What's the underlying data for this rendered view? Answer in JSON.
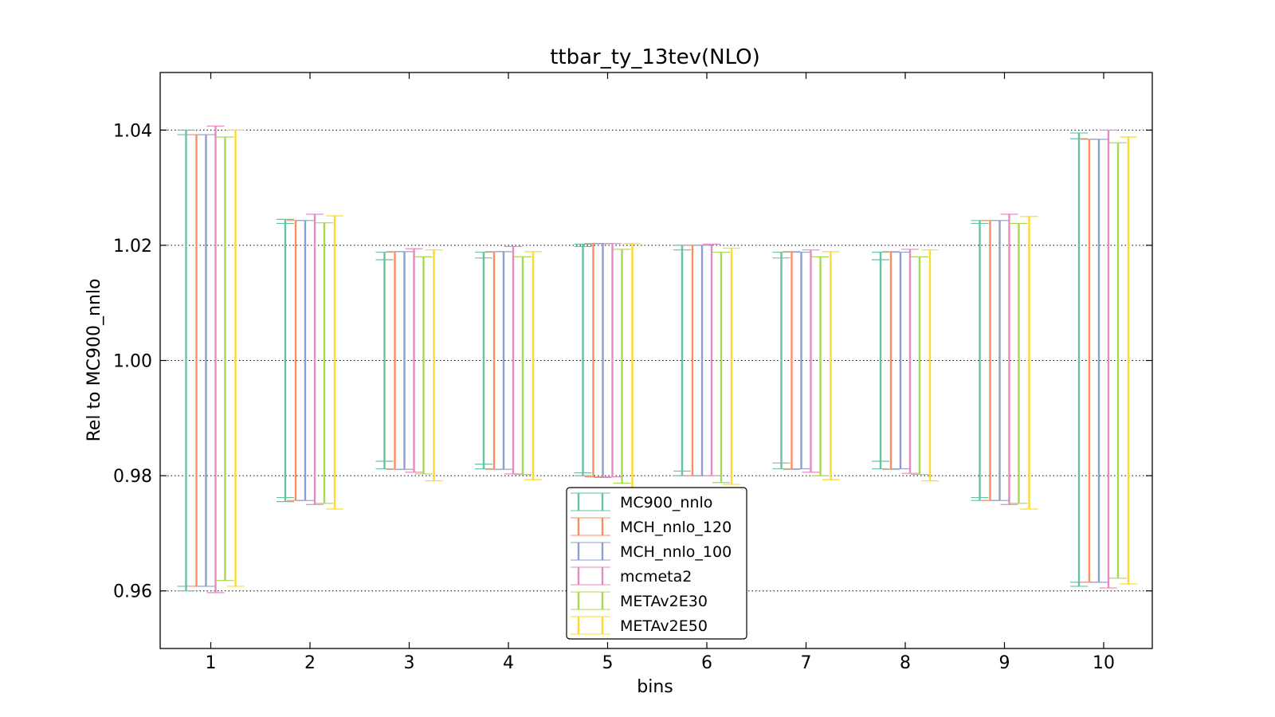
{
  "chart_data": {
    "type": "errorbar",
    "title": "ttbar_ty_13tev(NLO)",
    "xlabel": "bins",
    "ylabel": "Rel to MC900_nnlo",
    "ylim": [
      0.95,
      1.05
    ],
    "yticks": [
      "0.96",
      "0.98",
      "1.00",
      "1.02",
      "1.04"
    ],
    "ytick_values": [
      0.96,
      0.98,
      1.0,
      1.02,
      1.04
    ],
    "categories": [
      "1",
      "2",
      "3",
      "4",
      "5",
      "6",
      "7",
      "8",
      "9",
      "10"
    ],
    "grid": "horizontal dotted",
    "legend_position": "lower-center",
    "series": [
      {
        "name": "MC900_nnlo",
        "color": "#66c2a5",
        "lower": [
          0.96,
          0.9755,
          0.9812,
          0.9812,
          0.98,
          0.98,
          0.9812,
          0.9812,
          0.9757,
          0.9608
        ],
        "upper": [
          1.04,
          1.0245,
          1.0188,
          1.0188,
          1.0202,
          1.02,
          1.0188,
          1.0188,
          1.0243,
          1.0395
        ],
        "inner_lower": [
          0.9608,
          0.9762,
          0.9825,
          0.982,
          0.9805,
          0.9808,
          0.9822,
          0.9825,
          0.9762,
          0.9615
        ],
        "inner_upper": [
          1.0392,
          1.0238,
          1.0175,
          1.0178,
          1.0198,
          1.0192,
          1.0178,
          1.0175,
          1.0238,
          1.0385
        ]
      },
      {
        "name": "MCH_nnlo_120",
        "color": "#fc8d62",
        "lower": [
          0.9608,
          0.9757,
          0.9811,
          0.9811,
          0.9798,
          0.98,
          0.9811,
          0.9811,
          0.9757,
          0.9615
        ],
        "upper": [
          1.0392,
          1.0243,
          1.0189,
          1.0189,
          1.0203,
          1.02,
          1.0189,
          1.0189,
          1.0243,
          1.0384
        ]
      },
      {
        "name": "MCH_nnlo_100",
        "color": "#8da0cb",
        "lower": [
          0.9608,
          0.9757,
          0.9811,
          0.9811,
          0.9797,
          0.98,
          0.9812,
          0.9812,
          0.9757,
          0.9615
        ],
        "upper": [
          1.0392,
          1.0243,
          1.0189,
          1.0189,
          1.0203,
          1.02,
          1.0188,
          1.0188,
          1.0243,
          1.0384
        ]
      },
      {
        "name": "mcmeta2",
        "color": "#e78ac3",
        "lower": [
          0.9597,
          0.975,
          0.9806,
          0.9803,
          0.9798,
          0.98,
          0.9806,
          0.9804,
          0.975,
          0.9605
        ],
        "upper": [
          1.0407,
          1.0254,
          1.0194,
          1.0198,
          1.0203,
          1.0202,
          1.0192,
          1.0193,
          1.0254,
          1.04
        ]
      },
      {
        "name": "METAv2E30",
        "color": "#a6d854",
        "lower": [
          0.9618,
          0.9752,
          0.9803,
          0.9802,
          0.9787,
          0.9788,
          0.98,
          0.9802,
          0.9752,
          0.9622
        ],
        "upper": [
          1.0388,
          1.0239,
          1.018,
          1.018,
          1.0193,
          1.0188,
          1.018,
          1.018,
          1.0238,
          1.0378
        ]
      },
      {
        "name": "METAv2E50",
        "color": "#ffd92f",
        "lower": [
          0.9608,
          0.9742,
          0.9791,
          0.9793,
          0.9778,
          0.9785,
          0.9793,
          0.9791,
          0.9742,
          0.9612
        ],
        "upper": [
          1.04,
          1.0251,
          1.0192,
          1.0189,
          1.0203,
          1.0195,
          1.0189,
          1.0192,
          1.025,
          1.0388
        ]
      }
    ]
  }
}
